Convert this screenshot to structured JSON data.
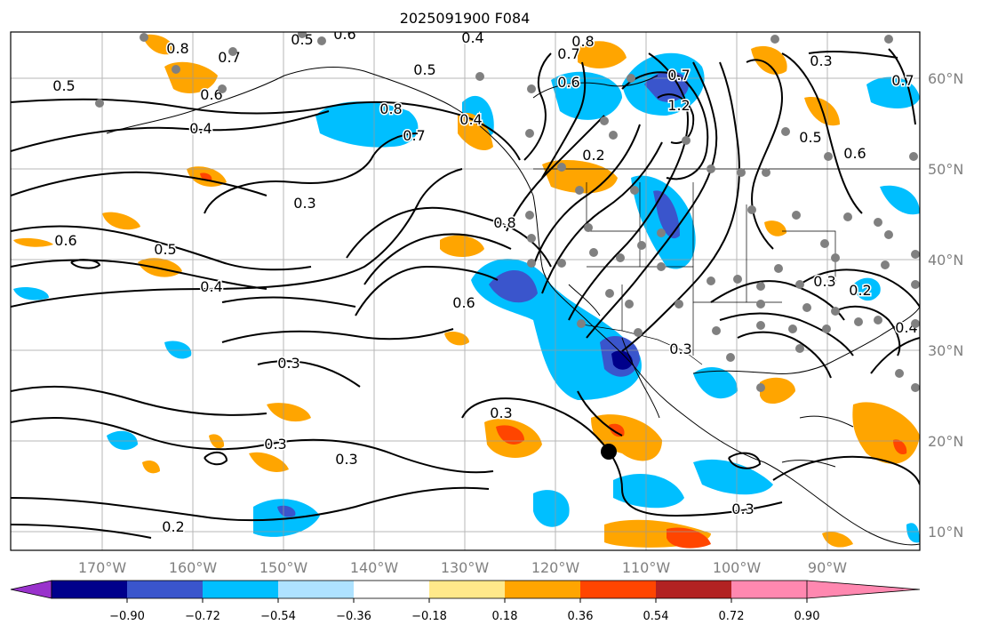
{
  "title": "2025091900 F084",
  "map": {
    "lon_ticks": [
      "170°W",
      "160°W",
      "150°W",
      "140°W",
      "130°W",
      "120°W",
      "110°W",
      "100°W",
      "90°W"
    ],
    "lat_ticks": [
      "10°N",
      "20°N",
      "30°N",
      "40°N",
      "50°N",
      "60°N"
    ]
  },
  "colorbar": {
    "tick_labels": [
      "−0.90",
      "−0.72",
      "−0.54",
      "−0.36",
      "−0.18",
      "0.18",
      "0.36",
      "0.54",
      "0.72",
      "0.90"
    ],
    "colors": [
      "#9932cc",
      "#00008b",
      "#3a55cc",
      "#00bfff",
      "#aee2ff",
      "#ffffff",
      "#ffe98a",
      "#ffa500",
      "#ff4500",
      "#b22222",
      "#ff88b0"
    ]
  },
  "contour_labels": [
    "0.8",
    "0.7",
    "0.6",
    "0.5",
    "0.4",
    "0.3",
    "0.6",
    "0.5",
    "0.4",
    "0.3",
    "0.8",
    "0.7",
    "0.6",
    "0.3",
    "0.3",
    "0.3",
    "0.2",
    "0.3",
    "0.2",
    "0.5",
    "0.6",
    "0.7",
    "0.4",
    "0.5",
    "0.6",
    "0.7",
    "0.8",
    "0.4",
    "1.2",
    "0.3",
    "0.2",
    "0.3",
    "0.7",
    "0.6",
    "0.4",
    "0.3",
    "0.5",
    "0.8"
  ]
}
